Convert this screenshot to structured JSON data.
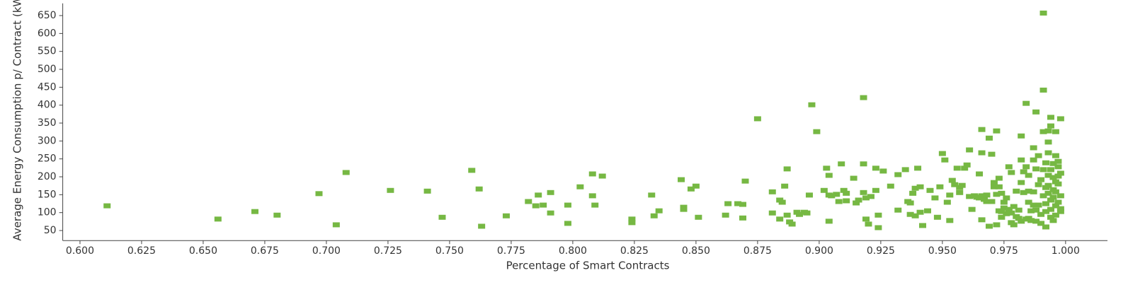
{
  "chart_data": {
    "type": "scatter",
    "x_label": "Percentage of Smart Contracts",
    "y_label": "Average Energy Consumption p/ Contract (kWh)",
    "color": "#76b843",
    "xlim": [
      0.593,
      1.017
    ],
    "ylim": [
      22,
      684
    ],
    "xticks": [
      {
        "value": 0.6,
        "label": "0.600"
      },
      {
        "value": 0.625,
        "label": "0.625"
      },
      {
        "value": 0.65,
        "label": "0.650"
      },
      {
        "value": 0.675,
        "label": "0.675"
      },
      {
        "value": 0.7,
        "label": "0.700"
      },
      {
        "value": 0.725,
        "label": "0.725"
      },
      {
        "value": 0.75,
        "label": "0.750"
      },
      {
        "value": 0.775,
        "label": "0.775"
      },
      {
        "value": 0.8,
        "label": "0.800"
      },
      {
        "value": 0.825,
        "label": "0.825"
      },
      {
        "value": 0.85,
        "label": "0.850"
      },
      {
        "value": 0.875,
        "label": "0.875"
      },
      {
        "value": 0.9,
        "label": "0.900"
      },
      {
        "value": 0.925,
        "label": "0.925"
      },
      {
        "value": 0.95,
        "label": "0.950"
      },
      {
        "value": 0.975,
        "label": "0.975"
      },
      {
        "value": 1.0,
        "label": "1.000"
      }
    ],
    "yticks": [
      50,
      100,
      150,
      200,
      250,
      300,
      350,
      400,
      450,
      500,
      550,
      600,
      650
    ],
    "x": [
      0.611,
      0.656,
      0.671,
      0.68,
      0.697,
      0.704,
      0.708,
      0.726,
      0.741,
      0.747,
      0.759,
      0.762,
      0.763,
      0.773,
      0.782,
      0.786,
      0.785,
      0.788,
      0.791,
      0.791,
      0.798,
      0.798,
      0.803,
      0.808,
      0.808,
      0.809,
      0.812,
      0.824,
      0.824,
      0.832,
      0.833,
      0.835,
      0.844,
      0.845,
      0.845,
      0.848,
      0.85,
      0.851,
      0.862,
      0.863,
      0.867,
      0.869,
      0.869,
      0.87,
      0.875,
      0.881,
      0.881,
      0.884,
      0.885,
      0.886,
      0.887,
      0.884,
      0.887,
      0.888,
      0.889,
      0.891,
      0.892,
      0.894,
      0.895,
      0.896,
      0.897,
      0.899,
      0.902,
      0.903,
      0.904,
      0.904,
      0.904,
      0.905,
      0.907,
      0.908,
      0.909,
      0.91,
      0.911,
      0.911,
      0.914,
      0.915,
      0.916,
      0.918,
      0.918,
      0.918,
      0.919,
      0.919,
      0.92,
      0.921,
      0.923,
      0.923,
      0.924,
      0.924,
      0.926,
      0.929,
      0.932,
      0.932,
      0.935,
      0.936,
      0.937,
      0.937,
      0.938,
      0.939,
      0.939,
      0.94,
      0.941,
      0.941,
      0.942,
      0.944,
      0.945,
      0.947,
      0.948,
      0.949,
      0.95,
      0.951,
      0.952,
      0.953,
      0.953,
      0.954,
      0.955,
      0.956,
      0.957,
      0.957,
      0.958,
      0.959,
      0.96,
      0.961,
      0.961,
      0.962,
      0.963,
      0.964,
      0.965,
      0.965,
      0.966,
      0.966,
      0.966,
      0.966,
      0.967,
      0.968,
      0.968,
      0.969,
      0.969,
      0.97,
      0.97,
      0.971,
      0.971,
      0.972,
      0.972,
      0.972,
      0.973,
      0.973,
      0.973,
      0.974,
      0.974,
      0.974,
      0.975,
      0.975,
      0.976,
      0.976,
      0.977,
      0.977,
      0.977,
      0.978,
      0.978,
      0.978,
      0.979,
      0.979,
      0.98,
      0.98,
      0.981,
      0.981,
      0.982,
      0.982,
      0.982,
      0.982,
      0.983,
      0.983,
      0.984,
      0.984,
      0.984,
      0.985,
      0.985,
      0.985,
      0.985,
      0.986,
      0.986,
      0.987,
      0.987,
      0.987,
      0.987,
      0.988,
      0.988,
      0.988,
      0.988,
      0.989,
      0.989,
      0.989,
      0.99,
      0.99,
      0.99,
      0.991,
      0.991,
      0.991,
      0.991,
      0.991,
      0.992,
      0.992,
      0.992,
      0.992,
      0.992,
      0.993,
      0.993,
      0.993,
      0.993,
      0.993,
      0.993,
      0.994,
      0.994,
      0.994,
      0.994,
      0.994,
      0.994,
      0.995,
      0.995,
      0.995,
      0.995,
      0.995,
      0.996,
      0.996,
      0.996,
      0.996,
      0.996,
      0.996,
      0.997,
      0.997,
      0.997,
      0.997,
      0.997,
      0.998,
      0.998,
      0.998,
      0.998,
      0.998
    ],
    "values": [
      119,
      82,
      103,
      93,
      153,
      66,
      212,
      162,
      160,
      87,
      218,
      166,
      62,
      91,
      131,
      149,
      119,
      121,
      156,
      99,
      121,
      70,
      172,
      208,
      147,
      121,
      202,
      82,
      72,
      149,
      91,
      105,
      192,
      109,
      115,
      166,
      174,
      87,
      93,
      125,
      125,
      123,
      85,
      188,
      362,
      158,
      99,
      135,
      129,
      174,
      222,
      82,
      93,
      74,
      68,
      101,
      95,
      101,
      99,
      149,
      401,
      326,
      162,
      224,
      149,
      76,
      204,
      147,
      151,
      131,
      236,
      162,
      154,
      133,
      196,
      127,
      135,
      421,
      236,
      156,
      141,
      82,
      68,
      145,
      224,
      162,
      58,
      93,
      216,
      174,
      206,
      107,
      220,
      131,
      95,
      127,
      154,
      168,
      91,
      224,
      101,
      172,
      64,
      105,
      162,
      141,
      87,
      172,
      265,
      247,
      129,
      149,
      78,
      190,
      178,
      224,
      156,
      170,
      176,
      224,
      233,
      275,
      145,
      109,
      147,
      143,
      141,
      208,
      332,
      267,
      80,
      147,
      137,
      149,
      131,
      308,
      62,
      131,
      263,
      184,
      172,
      151,
      328,
      66,
      196,
      105,
      172,
      103,
      87,
      154,
      113,
      129,
      97,
      141,
      228,
      103,
      109,
      212,
      72,
      99,
      66,
      117,
      89,
      160,
      107,
      84,
      314,
      247,
      76,
      184,
      214,
      156,
      82,
      405,
      228,
      84,
      129,
      204,
      160,
      105,
      78,
      247,
      121,
      281,
      158,
      76,
      222,
      107,
      381,
      259,
      178,
      121,
      95,
      192,
      70,
      220,
      326,
      147,
      442,
      657,
      170,
      103,
      60,
      239,
      125,
      154,
      297,
      204,
      267,
      328,
      176,
      87,
      135,
      366,
      220,
      109,
      342,
      164,
      237,
      198,
      143,
      78,
      119,
      186,
      326,
      259,
      93,
      158,
      228,
      202,
      129,
      180,
      243,
      111,
      210,
      362,
      147,
      103
    ]
  }
}
